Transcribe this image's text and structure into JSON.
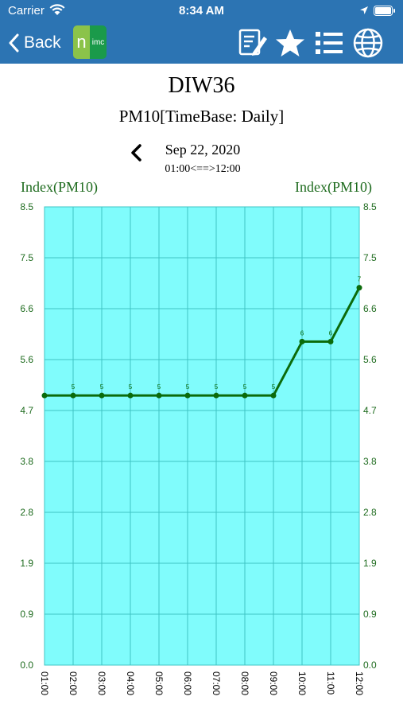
{
  "status_bar": {
    "carrier": "Carrier",
    "time": "8:34 AM"
  },
  "nav": {
    "back_label": "Back",
    "logo_n": "n",
    "logo_rest": "imc"
  },
  "header": {
    "title": "DIW36",
    "subtitle": "PM10[TimeBase: Daily]",
    "date": "Sep 22, 2020",
    "range": "01:00<==>12:00"
  },
  "colors": {
    "bar": "#2c74b3",
    "plot_bg": "#80fcfc",
    "line": "#0b6b0b",
    "axis_text": "#1e6b1e",
    "grid": "#3fc4c4"
  },
  "chart_data": {
    "type": "line",
    "ylabel_left": "Index(PM10)",
    "ylabel_right": "Index(PM10)",
    "ylim": [
      0,
      8.5
    ],
    "yticks": [
      "0.0",
      "0.9",
      "1.9",
      "2.8",
      "3.8",
      "4.7",
      "5.6",
      "6.6",
      "7.5",
      "8.5"
    ],
    "x": [
      "01:00",
      "02:00",
      "03:00",
      "04:00",
      "05:00",
      "06:00",
      "07:00",
      "08:00",
      "09:00",
      "10:00",
      "11:00",
      "12:00"
    ],
    "series": [
      {
        "values": [
          5,
          5,
          5,
          5,
          5,
          5,
          5,
          5,
          5,
          6,
          6,
          7
        ],
        "point_labels": [
          "",
          "5",
          "5",
          "5",
          "5",
          "5",
          "5",
          "5",
          "5",
          "6",
          "6",
          "7"
        ]
      }
    ],
    "grid": true
  }
}
